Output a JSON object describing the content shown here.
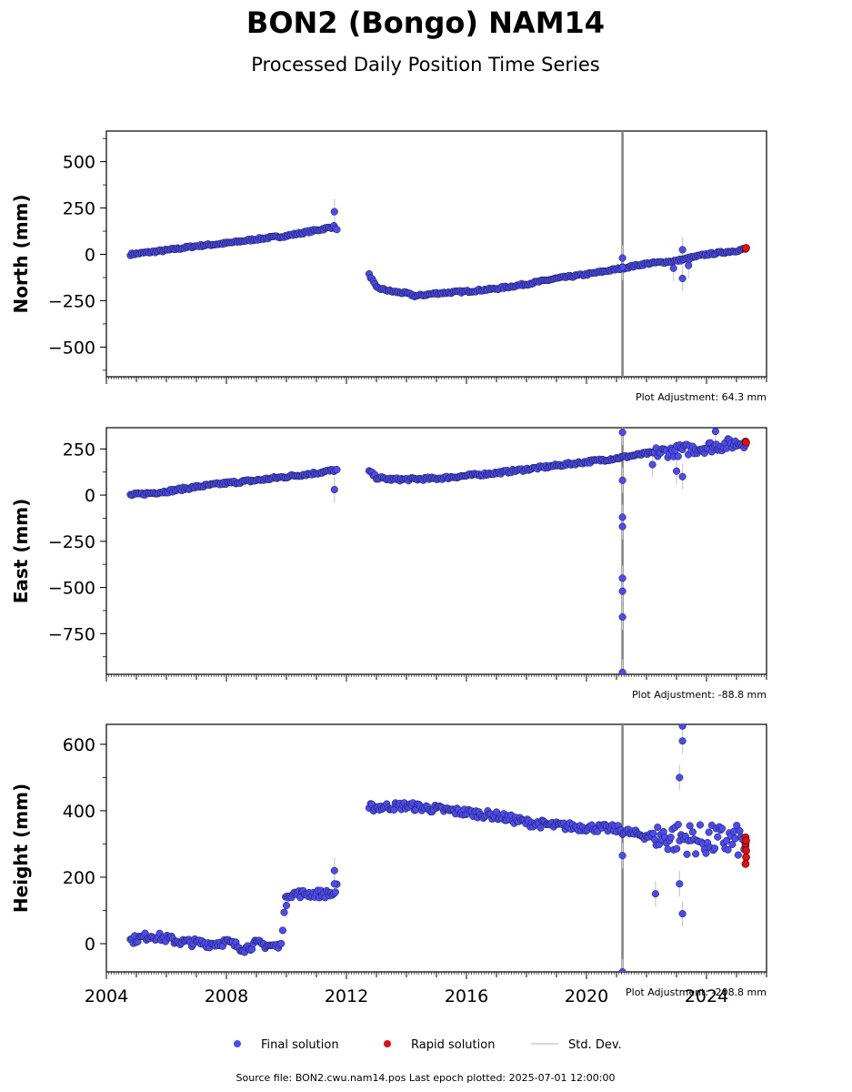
{
  "title": "BON2 (Bongo) NAM14",
  "subtitle": "Processed Daily Position Time Series",
  "footer": "Source file: BON2.cwu.nam14.pos  Last epoch plotted: 2025-07-01 12:00:00",
  "legend": {
    "final": "Final solution",
    "rapid": "Rapid solution",
    "stddev": "Std. Dev."
  },
  "colors": {
    "final": "#4b4bf0",
    "rapid": "#e01010",
    "stddev": "#cccccc",
    "event_line": "#808080"
  },
  "chart_data": {
    "type": "scatter",
    "x_axis": {
      "label": "",
      "range": [
        2004,
        2026
      ],
      "ticks": [
        2004,
        2008,
        2012,
        2016,
        2020,
        2024
      ]
    },
    "event_line_year": 2021.2,
    "series": [
      {
        "name": "North (mm)",
        "ylabel": "North (mm)",
        "ylim": [
          -660,
          665
        ],
        "yticks": [
          -500,
          -250,
          0,
          250,
          500
        ],
        "adjustment": "Plot Adjustment: 64.3 mm",
        "trend": [
          [
            2004.8,
            0
          ],
          [
            2006,
            22
          ],
          [
            2007,
            45
          ],
          [
            2008,
            60
          ],
          [
            2009,
            82
          ],
          [
            2010,
            100
          ],
          [
            2011,
            130
          ],
          [
            2011.6,
            150
          ],
          [
            2012.8,
            -120
          ],
          [
            2013,
            -180
          ],
          [
            2013.5,
            -200
          ],
          [
            2014,
            -210
          ],
          [
            2014.3,
            -225
          ],
          [
            2015,
            -210
          ],
          [
            2016,
            -200
          ],
          [
            2017,
            -185
          ],
          [
            2018,
            -160
          ],
          [
            2019,
            -130
          ],
          [
            2020,
            -108
          ],
          [
            2021,
            -80
          ],
          [
            2022,
            -50
          ],
          [
            2023,
            -35
          ],
          [
            2024,
            0
          ],
          [
            2025,
            20
          ],
          [
            2025.3,
            30
          ]
        ],
        "gaps": [
          [
            2011.7,
            2012.75
          ]
        ],
        "outliers": [
          [
            2011.6,
            230
          ],
          [
            2021.2,
            -20
          ],
          [
            2021.2,
            -70
          ],
          [
            2023.2,
            -130
          ],
          [
            2023.2,
            25
          ],
          [
            2022.9,
            -75
          ],
          [
            2023.4,
            -60
          ]
        ],
        "rapid": [
          [
            2025.3,
            30
          ],
          [
            2025.32,
            35
          ]
        ],
        "noise": 6
      },
      {
        "name": "East (mm)",
        "ylabel": "East (mm)",
        "ylim": [
          -970,
          365
        ],
        "yticks": [
          -750,
          -500,
          -250,
          0,
          250
        ],
        "adjustment": "Plot Adjustment: -88.8 mm",
        "trend": [
          [
            2004.8,
            0
          ],
          [
            2006,
            20
          ],
          [
            2007,
            45
          ],
          [
            2008,
            65
          ],
          [
            2009,
            80
          ],
          [
            2010,
            100
          ],
          [
            2011,
            120
          ],
          [
            2011.6,
            135
          ],
          [
            2012.8,
            125
          ],
          [
            2013,
            95
          ],
          [
            2013.5,
            85
          ],
          [
            2014,
            85
          ],
          [
            2015,
            90
          ],
          [
            2016,
            105
          ],
          [
            2017,
            120
          ],
          [
            2018,
            140
          ],
          [
            2019,
            160
          ],
          [
            2020,
            180
          ],
          [
            2021,
            200
          ],
          [
            2022,
            225
          ],
          [
            2023,
            240
          ],
          [
            2024,
            260
          ],
          [
            2025,
            280
          ],
          [
            2025.3,
            290
          ]
        ],
        "gaps": [
          [
            2011.7,
            2012.75
          ]
        ],
        "outliers": [
          [
            2011.6,
            30
          ],
          [
            2021.2,
            340
          ],
          [
            2021.2,
            80
          ],
          [
            2021.2,
            -120
          ],
          [
            2021.2,
            -170
          ],
          [
            2021.2,
            -450
          ],
          [
            2021.2,
            -520
          ],
          [
            2021.2,
            -660
          ],
          [
            2021.2,
            -960
          ],
          [
            2022.2,
            165
          ],
          [
            2023.0,
            130
          ],
          [
            2023.2,
            100
          ],
          [
            2024.3,
            345
          ]
        ],
        "rapid": [
          [
            2025.3,
            290
          ],
          [
            2025.32,
            285
          ]
        ],
        "noise": 8
      },
      {
        "name": "Height (mm)",
        "ylabel": "Height (mm)",
        "ylim": [
          -85,
          660
        ],
        "yticks": [
          0,
          200,
          400,
          600
        ],
        "adjustment": "Plot Adjustment: -208.8 mm",
        "trend": [
          [
            2004.8,
            10
          ],
          [
            2005.5,
            25
          ],
          [
            2006.5,
            5
          ],
          [
            2007.5,
            0
          ],
          [
            2008,
            5
          ],
          [
            2008.6,
            -15
          ],
          [
            2009,
            0
          ],
          [
            2009.8,
            -10
          ],
          [
            2010,
            150
          ],
          [
            2011,
            150
          ],
          [
            2011.6,
            150
          ],
          [
            2012.8,
            410
          ],
          [
            2014,
            415
          ],
          [
            2015,
            405
          ],
          [
            2016,
            395
          ],
          [
            2017,
            385
          ],
          [
            2018,
            365
          ],
          [
            2019,
            355
          ],
          [
            2020,
            350
          ],
          [
            2021,
            345
          ],
          [
            2021.6,
            330
          ],
          [
            2022,
            325
          ],
          [
            2022.5,
            320
          ],
          [
            2023,
            320
          ],
          [
            2024,
            310
          ],
          [
            2025,
            310
          ],
          [
            2025.3,
            300
          ]
        ],
        "gaps": [
          [
            2011.7,
            2012.75
          ]
        ],
        "outliers": [
          [
            2010,
            115
          ],
          [
            2011.6,
            220
          ],
          [
            2011.6,
            180
          ],
          [
            2021.2,
            265
          ],
          [
            2021.2,
            -85
          ],
          [
            2022.3,
            150
          ],
          [
            2023.2,
            655
          ],
          [
            2023.2,
            610
          ],
          [
            2023.1,
            500
          ],
          [
            2023.1,
            180
          ],
          [
            2023.2,
            90
          ]
        ],
        "rapid": [
          [
            2025.3,
            320
          ],
          [
            2025.3,
            300
          ],
          [
            2025.32,
            280
          ],
          [
            2025.32,
            260
          ],
          [
            2025.3,
            240
          ],
          [
            2025.32,
            310
          ]
        ],
        "noise": 12
      }
    ]
  }
}
